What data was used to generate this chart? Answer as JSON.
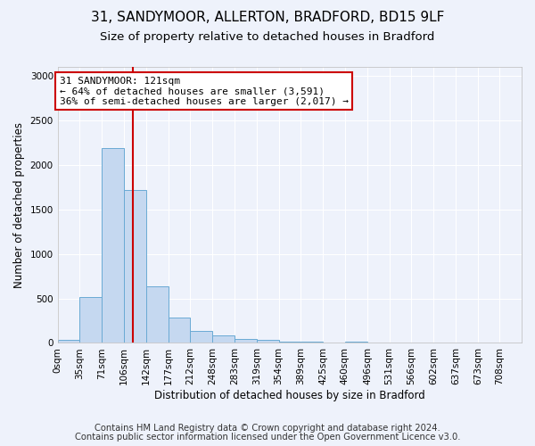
{
  "title1": "31, SANDYMOOR, ALLERTON, BRADFORD, BD15 9LF",
  "title2": "Size of property relative to detached houses in Bradford",
  "xlabel": "Distribution of detached houses by size in Bradford",
  "ylabel": "Number of detached properties",
  "footnote1": "Contains HM Land Registry data © Crown copyright and database right 2024.",
  "footnote2": "Contains public sector information licensed under the Open Government Licence v3.0.",
  "bin_labels": [
    "0sqm",
    "35sqm",
    "71sqm",
    "106sqm",
    "142sqm",
    "177sqm",
    "212sqm",
    "248sqm",
    "283sqm",
    "319sqm",
    "354sqm",
    "389sqm",
    "425sqm",
    "460sqm",
    "496sqm",
    "531sqm",
    "566sqm",
    "602sqm",
    "637sqm",
    "673sqm",
    "708sqm"
  ],
  "bar_values": [
    30,
    520,
    2190,
    1720,
    640,
    290,
    135,
    80,
    45,
    30,
    18,
    12,
    8,
    18,
    5,
    4,
    3,
    2,
    2,
    2,
    2
  ],
  "bar_color": "#c5d8f0",
  "bar_edge_color": "#6aaad4",
  "bin_edges": [
    0,
    35,
    71,
    106,
    142,
    177,
    212,
    248,
    283,
    319,
    354,
    389,
    425,
    460,
    496,
    531,
    566,
    602,
    637,
    673,
    708,
    743
  ],
  "vline_x": 121,
  "vline_color": "#cc0000",
  "annotation_title": "31 SANDYMOOR: 121sqm",
  "annotation_line1": "← 64% of detached houses are smaller (3,591)",
  "annotation_line2": "36% of semi-detached houses are larger (2,017) →",
  "annotation_box_color": "#ffffff",
  "annotation_box_edge": "#cc0000",
  "ylim": [
    0,
    3100
  ],
  "yticks": [
    0,
    500,
    1000,
    1500,
    2000,
    2500,
    3000
  ],
  "background_color": "#eef2fb",
  "grid_color": "#ffffff",
  "title1_fontsize": 11,
  "title2_fontsize": 9.5,
  "axis_fontsize": 8.5,
  "tick_fontsize": 7.5,
  "footnote_fontsize": 7.2
}
